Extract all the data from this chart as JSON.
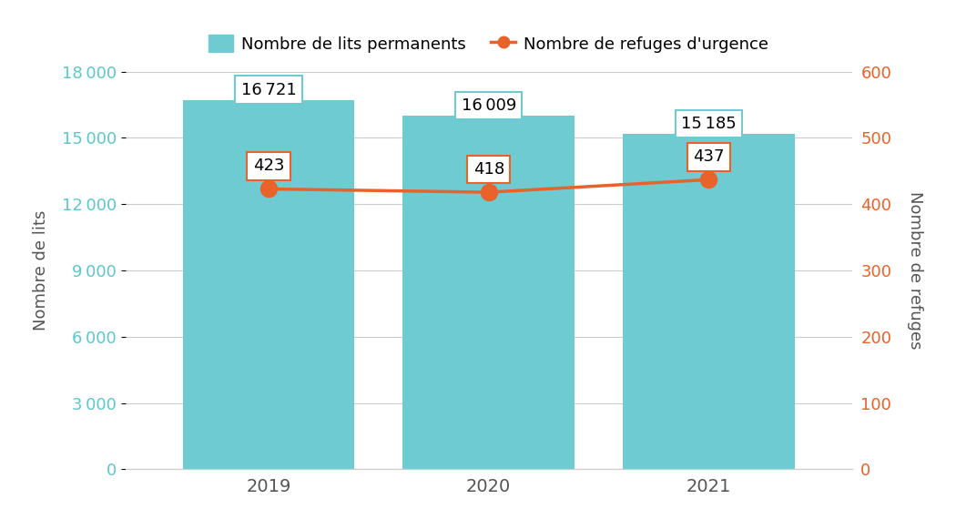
{
  "years": [
    "2019",
    "2020",
    "2021"
  ],
  "beds": [
    16721,
    16009,
    15185
  ],
  "shelters": [
    423,
    418,
    437
  ],
  "bar_color": "#6ecbd1",
  "line_color": "#e8622a",
  "left_axis_color": "#5bc8cd",
  "right_axis_color": "#e8622a",
  "left_ylabel": "Nombre de lits",
  "right_ylabel": "Nombre de refuges",
  "legend_bar": "Nombre de lits permanents",
  "legend_line": "Nombre de refuges d'urgence",
  "ylim_left": [
    0,
    18000
  ],
  "ylim_right": [
    0,
    600
  ],
  "yticks_left": [
    0,
    3000,
    6000,
    9000,
    12000,
    15000,
    18000
  ],
  "yticks_right": [
    0,
    100,
    200,
    300,
    400,
    500,
    600
  ],
  "background_color": "#ffffff",
  "grid_color": "#cccccc",
  "text_color": "#555555",
  "bar_annotation_border": "#6ecbd1",
  "shelter_annotation_border": "#e8622a"
}
